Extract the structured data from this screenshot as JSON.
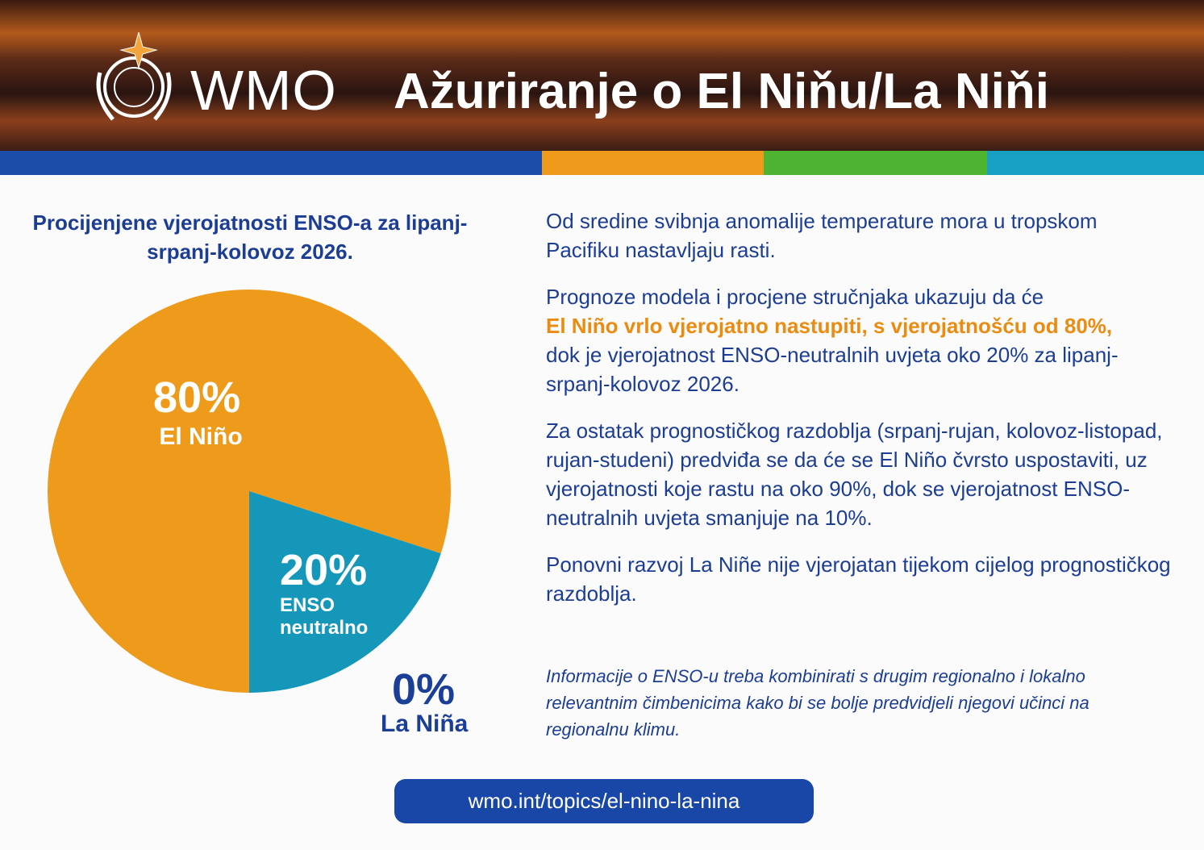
{
  "header": {
    "org": "WMO",
    "title": "Ažuriranje o El Niňu/La Niňi"
  },
  "chart_data": {
    "type": "pie",
    "title": "Procijenjene vjerojatnosti ENSO-a za lipanj-srpanj-kolovoz 2026.",
    "categories": [
      "El Niño",
      "ENSO neutralno",
      "La Niña"
    ],
    "values": [
      80,
      20,
      0
    ],
    "value_labels": [
      "80%",
      "20%",
      "0%"
    ],
    "colors": [
      "#ee9a1a",
      "#1597b9",
      "#1b3f97"
    ]
  },
  "paragraphs": [
    [
      "Od sredine svibnja anomalije temperature mora u tropskom Pacifiku nastavljaju rasti."
    ],
    [
      "Prognoze modela i procjene stručnjaka ukazuju da će",
      "El Niño vrlo vjerojatno nastupiti, s vjerojatnošću od 80%,",
      "dok je vjerojatnost ENSO-neutralnih uvjeta oko 20% za lipanj-srpanj-kolovoz 2026."
    ],
    [
      "Za ostatak prognostičkog razdoblja (srpanj-rujan, kolovoz-listopad, rujan-studeni) predviđa se da će se El Niño čvrsto uspostaviti, uz vjerojatnosti koje rastu na oko 90%, dok se vjerojatnost ENSO-neutralnih uvjeta smanjuje na 10%."
    ],
    [
      "Ponovni razvoj La Niñe nije vjerojatan tijekom cijelog prognostičkog razdoblja."
    ]
  ],
  "note": "Informacije o ENSO-u treba kombinirati s drugim regionalno i lokalno relevantnim čimbenicima kako bi se bolje predvidjeli njegovi učinci na regionalnu klimu.",
  "link": "wmo.int/topics/el-nino-la-nina"
}
